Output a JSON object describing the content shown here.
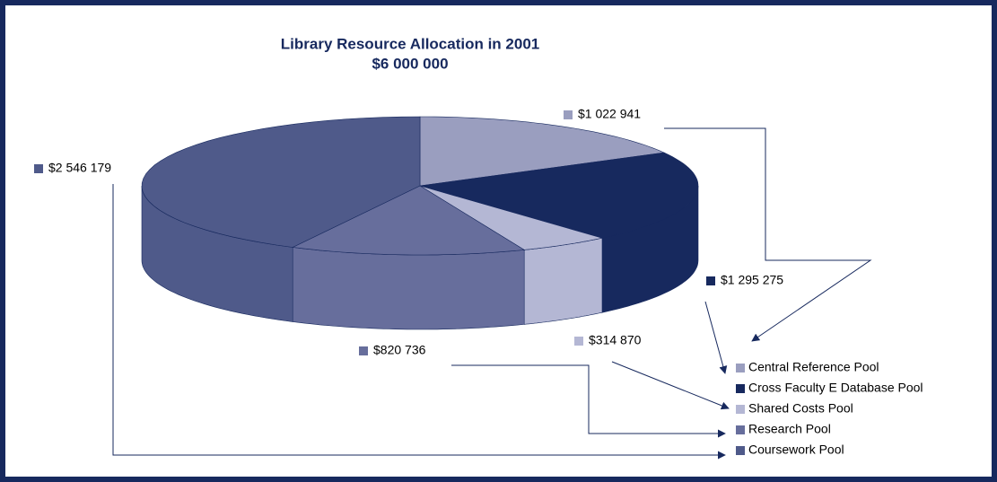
{
  "chart_data": {
    "type": "pie3d",
    "title": "Library Resource Allocation in 2001",
    "subtitle": "$6 000 000",
    "categories": [
      "Central Reference Pool",
      "Cross Faculty E Database Pool",
      "Shared Costs Pool",
      "Research Pool",
      "Coursework Pool"
    ],
    "values": [
      1022941,
      1295275,
      314870,
      820736,
      2546179
    ],
    "value_labels": [
      "$1 022 941",
      "$1 295 275",
      "$314 870",
      "$820 736",
      "$2 546 179"
    ],
    "colors": [
      "#9a9ebf",
      "#17295e",
      "#b4b7d4",
      "#676e9c",
      "#4f5a8a"
    ]
  }
}
